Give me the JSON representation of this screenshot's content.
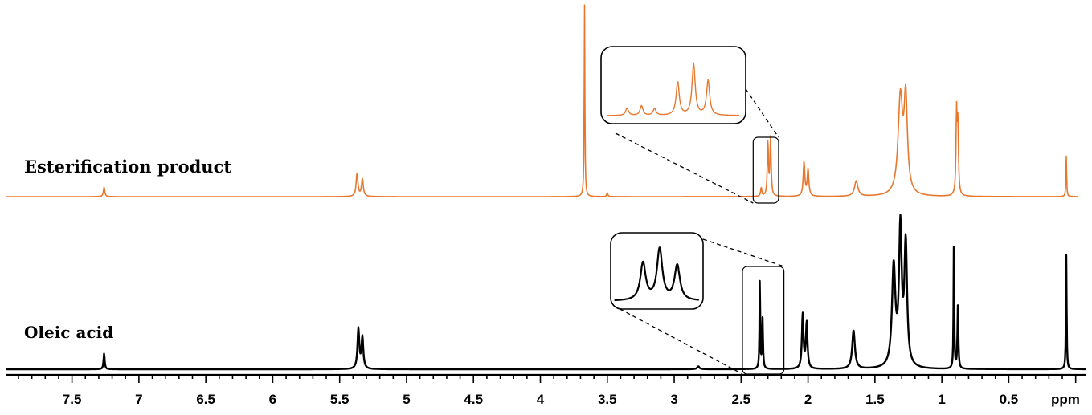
{
  "chart_data": {
    "type": "line",
    "x_axis": {
      "reversed": true,
      "range": [
        -0.08,
        7.99
      ],
      "ticks": [
        7.5,
        7,
        6.5,
        6,
        5.5,
        5,
        4.5,
        4,
        3.5,
        3,
        2.5,
        2,
        1.5,
        1,
        0.5
      ],
      "tick_labels": [
        "7.5",
        "7",
        "6.5",
        "6",
        "5.5",
        "5",
        "4.5",
        "4",
        "3.5",
        "3",
        "2.5",
        "2",
        "1.5",
        "1",
        "0.5"
      ],
      "unit_label": "ppm"
    },
    "series": [
      {
        "name": "Esterification product",
        "color": "#e8772e",
        "peaks": [
          {
            "ppm": 7.26,
            "height": 0.05,
            "width": 0.006
          },
          {
            "ppm": 5.37,
            "height": 0.12,
            "width": 0.008
          },
          {
            "ppm": 5.33,
            "height": 0.09,
            "width": 0.008
          },
          {
            "ppm": 3.67,
            "height": 1.0,
            "width": 0.003
          },
          {
            "ppm": 3.5,
            "height": 0.02,
            "width": 0.005
          },
          {
            "ppm": 2.35,
            "height": 0.045,
            "width": 0.005
          },
          {
            "ppm": 2.3,
            "height": 0.28,
            "width": 0.005
          },
          {
            "ppm": 2.28,
            "height": 0.3,
            "width": 0.005
          },
          {
            "ppm": 2.03,
            "height": 0.18,
            "width": 0.007
          },
          {
            "ppm": 2.0,
            "height": 0.14,
            "width": 0.007
          },
          {
            "ppm": 1.64,
            "height": 0.08,
            "width": 0.015
          },
          {
            "ppm": 1.31,
            "height": 0.5,
            "width": 0.02
          },
          {
            "ppm": 1.27,
            "height": 0.48,
            "width": 0.015
          },
          {
            "ppm": 0.89,
            "height": 0.42,
            "width": 0.005
          },
          {
            "ppm": 0.88,
            "height": 0.35,
            "width": 0.005
          },
          {
            "ppm": 0.07,
            "height": 0.21,
            "width": 0.003
          }
        ]
      },
      {
        "name": "Oleic acid",
        "color": "#000000",
        "peaks": [
          {
            "ppm": 7.26,
            "height": 0.11,
            "width": 0.005
          },
          {
            "ppm": 5.36,
            "height": 0.28,
            "width": 0.008
          },
          {
            "ppm": 5.33,
            "height": 0.22,
            "width": 0.008
          },
          {
            "ppm": 2.82,
            "height": 0.02,
            "width": 0.01
          },
          {
            "ppm": 2.36,
            "height": 0.65,
            "width": 0.003
          },
          {
            "ppm": 2.34,
            "height": 0.35,
            "width": 0.004
          },
          {
            "ppm": 2.04,
            "height": 0.38,
            "width": 0.007
          },
          {
            "ppm": 2.01,
            "height": 0.32,
            "width": 0.007
          },
          {
            "ppm": 1.66,
            "height": 0.27,
            "width": 0.012
          },
          {
            "ppm": 1.36,
            "height": 0.7,
            "width": 0.015
          },
          {
            "ppm": 1.31,
            "height": 0.95,
            "width": 0.012
          },
          {
            "ppm": 1.27,
            "height": 0.85,
            "width": 0.012
          },
          {
            "ppm": 0.91,
            "height": 0.9,
            "width": 0.003
          },
          {
            "ppm": 0.88,
            "height": 0.45,
            "width": 0.004
          },
          {
            "ppm": 0.07,
            "height": 0.8,
            "width": 0.003
          }
        ]
      }
    ],
    "annotations": [
      {
        "series": "Esterification product",
        "highlight_range_ppm": [
          2.22,
          2.41
        ],
        "inset": "zoom of highlighted multiplet"
      },
      {
        "series": "Oleic acid",
        "highlight_range_ppm": [
          2.18,
          2.49
        ],
        "inset": "zoom of highlighted multiplet"
      }
    ],
    "grid": false
  }
}
